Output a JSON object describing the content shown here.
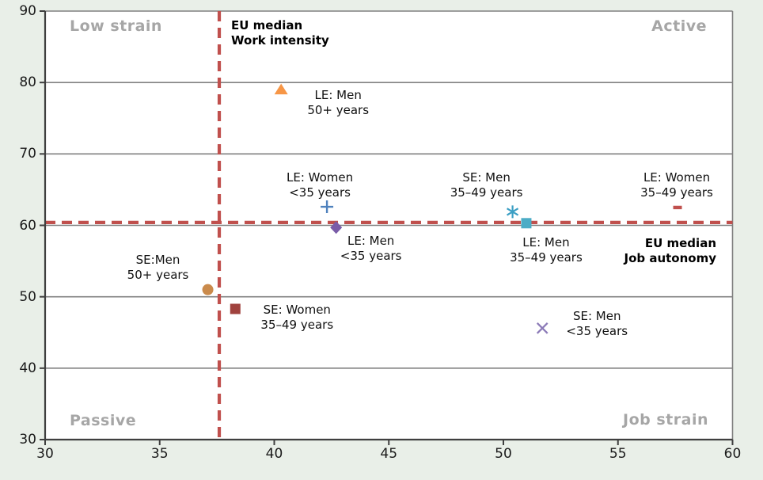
{
  "colors": {
    "background": "#E9EFE8",
    "plot_background": "#FFFFFF",
    "gridline": "#808080",
    "axis": "#3F3F3F",
    "median_line": "#C0504D",
    "quadrant_label": "#A6A6A6",
    "text": "#1A1A1A"
  },
  "chart_data": {
    "type": "scatter",
    "title": "",
    "xlabel": "",
    "ylabel": "",
    "xlim": [
      30,
      60
    ],
    "ylim": [
      30,
      90
    ],
    "x_ticks": [
      "30",
      "35",
      "40",
      "45",
      "50",
      "55",
      "60"
    ],
    "x_tick_values": [
      30,
      35,
      40,
      45,
      50,
      55,
      60
    ],
    "y_ticks": [
      "30",
      "40",
      "50",
      "60",
      "70",
      "80",
      "90"
    ],
    "y_tick_values": [
      30,
      40,
      50,
      60,
      70,
      80,
      90
    ],
    "grid": "horizontal gridlines only",
    "legend_position": "none (points labeled inline)",
    "medians": {
      "work_intensity_x": 37.6,
      "job_autonomy_y": 60.4,
      "line_style": "dashed"
    },
    "median_labels": [
      {
        "id": "work-intensity",
        "lines": [
          "EU median",
          "Work intensity"
        ]
      },
      {
        "id": "job-autonomy",
        "lines": [
          "EU median",
          "Job autonomy"
        ]
      }
    ],
    "quadrant_labels": [
      {
        "id": "top-left",
        "text": "Low strain"
      },
      {
        "id": "top-right",
        "text": "Active"
      },
      {
        "id": "bottom-left",
        "text": "Passive"
      },
      {
        "id": "bottom-right",
        "text": "Job strain"
      }
    ],
    "points": [
      {
        "label_lines": [
          "LE: Men",
          "50+ years"
        ],
        "x": 40.3,
        "y": 79.0,
        "marker": "triangle",
        "color": "#F79646",
        "label_offset": [
          72,
          17
        ]
      },
      {
        "label_lines": [
          "LE: Women",
          "<35 years"
        ],
        "x": 42.3,
        "y": 62.6,
        "marker": "plus",
        "color": "#4F81BD",
        "label_offset": [
          -9,
          -27
        ]
      },
      {
        "label_lines": [
          "LE: Men",
          "<35 years"
        ],
        "x": 42.7,
        "y": 59.7,
        "marker": "diamond",
        "color": "#7A5CA8",
        "label_offset": [
          44,
          27
        ]
      },
      {
        "label_lines": [
          "SE: Men",
          "35–49 years"
        ],
        "x": 50.4,
        "y": 61.9,
        "marker": "asterisk",
        "color": "#3C9FC4",
        "label_offset": [
          -33,
          -33
        ]
      },
      {
        "label_lines": [
          "LE: Men",
          "35–49 years"
        ],
        "x": 51.0,
        "y": 60.3,
        "marker": "square",
        "color": "#4BACC6",
        "label_offset": [
          25,
          34
        ]
      },
      {
        "label_lines": [
          "LE: Women",
          "35–49 years"
        ],
        "x": 57.6,
        "y": 62.5,
        "marker": "dash",
        "color": "#C0504D",
        "label_offset": [
          -1,
          -28
        ]
      },
      {
        "label_lines": [
          "SE:Men",
          "50+ years"
        ],
        "x": 37.1,
        "y": 51.0,
        "marker": "circle",
        "color": "#CA8A4B",
        "label_offset": [
          -63,
          -28
        ]
      },
      {
        "label_lines": [
          "SE: Women",
          "35–49 years"
        ],
        "x": 38.3,
        "y": 48.3,
        "marker": "square",
        "color": "#A0423E",
        "label_offset": [
          78,
          11
        ]
      },
      {
        "label_lines": [
          "SE: Men",
          "<35 years"
        ],
        "x": 51.7,
        "y": 45.6,
        "marker": "x",
        "color": "#8C7BB8",
        "label_offset": [
          69,
          -5
        ]
      }
    ]
  }
}
